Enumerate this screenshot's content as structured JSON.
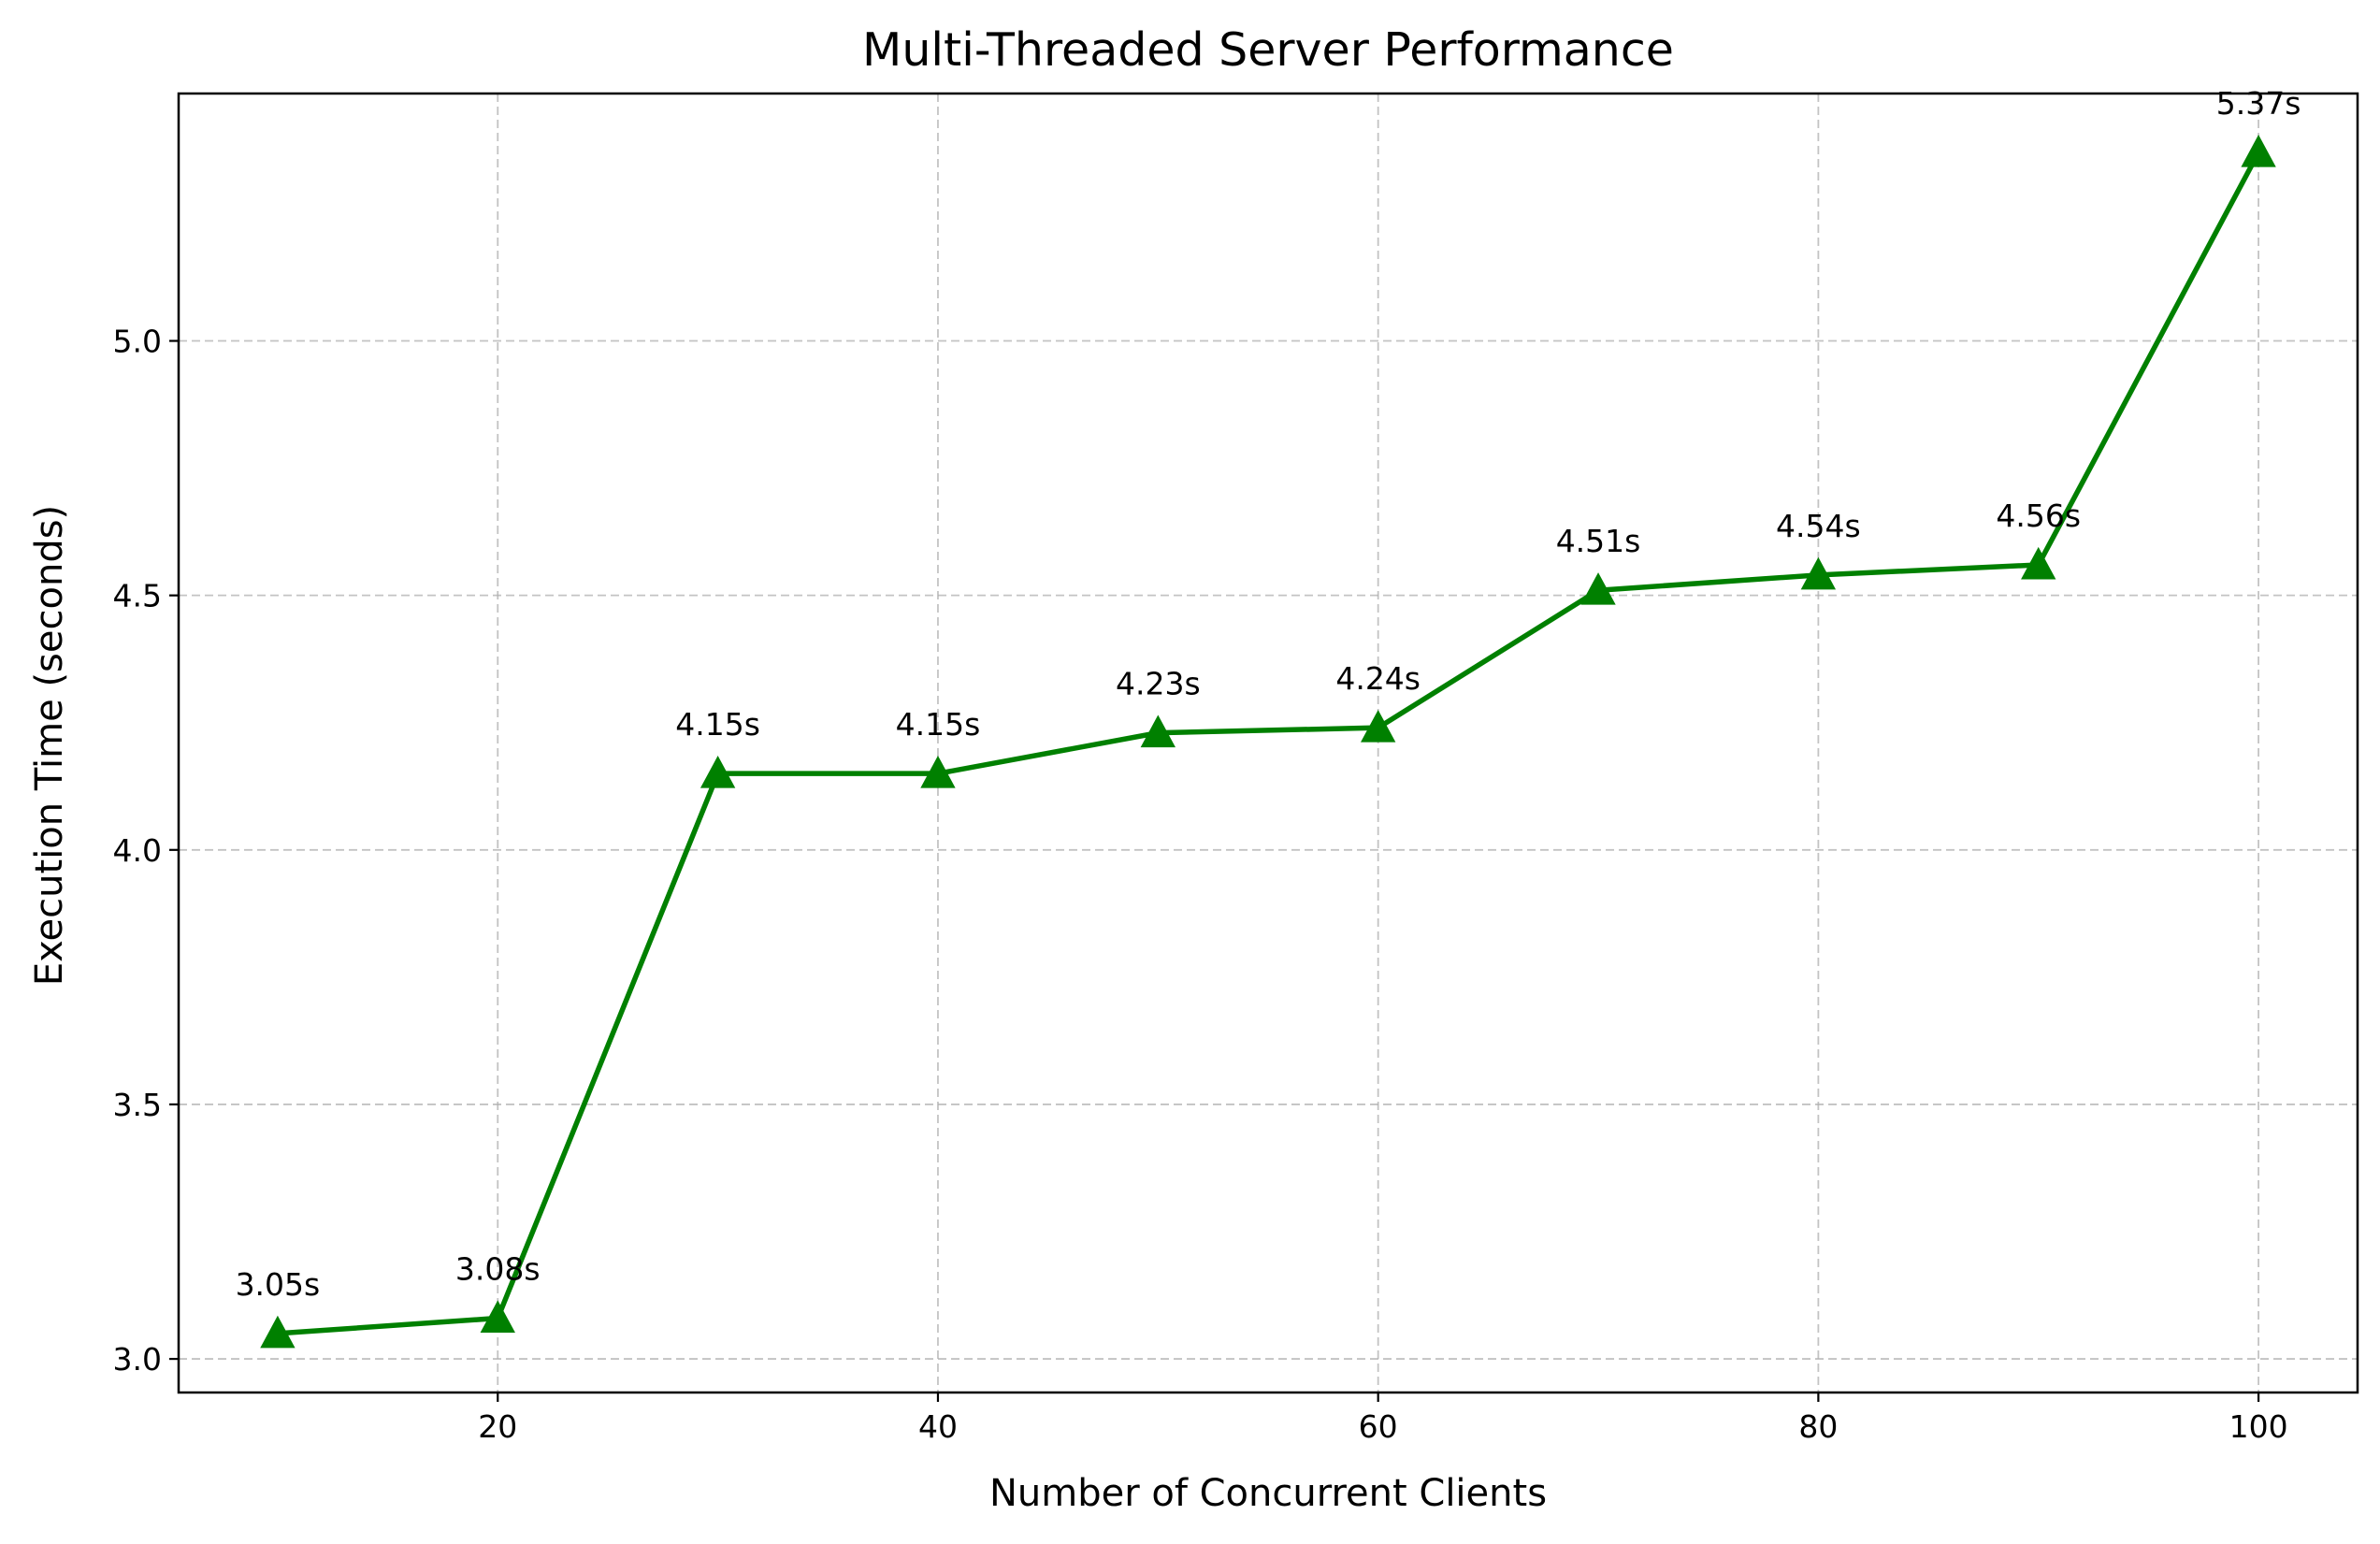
{
  "chart_data": {
    "type": "line",
    "title": "Multi-Threaded Server Performance",
    "xlabel": "Number of Concurrent Clients",
    "ylabel": "Execution Time (seconds)",
    "x": [
      10,
      20,
      30,
      40,
      50,
      60,
      70,
      80,
      90,
      100
    ],
    "series": [
      {
        "values": [
          3.05,
          3.08,
          4.15,
          4.15,
          4.23,
          4.24,
          4.51,
          4.54,
          4.56,
          5.37
        ],
        "labels": [
          "3.05s",
          "3.08s",
          "4.15s",
          "4.15s",
          "4.23s",
          "4.24s",
          "4.51s",
          "4.54s",
          "4.56s",
          "5.37s"
        ],
        "color": "#008000",
        "marker": "triangle-up"
      }
    ],
    "xticks": [
      20,
      40,
      60,
      80,
      100
    ],
    "xtick_labels": [
      "20",
      "40",
      "60",
      "80",
      "100"
    ],
    "yticks": [
      3.0,
      3.5,
      4.0,
      4.5,
      5.0
    ],
    "ytick_labels": [
      "3.0",
      "3.5",
      "4.0",
      "4.5",
      "5.0"
    ],
    "xlim": [
      5.5,
      104.5
    ],
    "ylim": [
      2.934,
      5.486
    ],
    "grid": true
  }
}
